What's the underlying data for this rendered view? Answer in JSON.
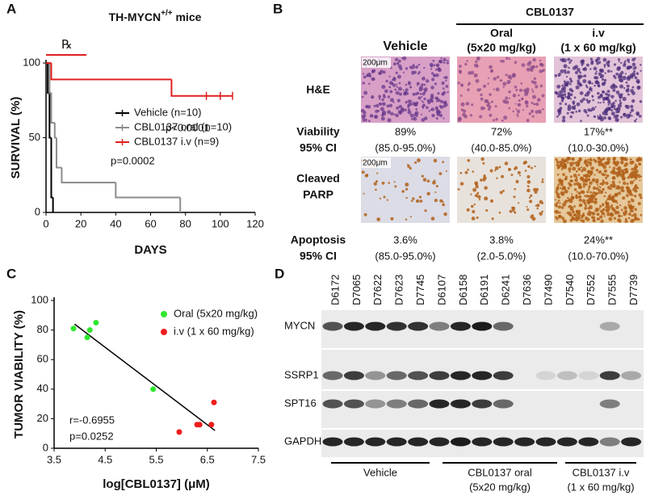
{
  "panel_labels": [
    "A",
    "B",
    "C",
    "D"
  ],
  "chart_data": [
    {
      "type": "step",
      "title": "TH-MYCN",
      "title_superscript": "+/+",
      "treatment_symbol": "℞",
      "x_label": "DAYS",
      "y_label": "SURVIVAL (%)",
      "xlim": [
        0,
        120
      ],
      "ylim": [
        0,
        100
      ],
      "xticks": [
        0,
        20,
        40,
        60,
        80,
        100,
        120
      ],
      "yticks": [
        0,
        50,
        100
      ],
      "series": [
        {
          "name": "Vehicle (n=10)",
          "color": "#000000",
          "x": [
            0,
            1,
            2,
            3,
            4
          ],
          "values": [
            100,
            80,
            50,
            10,
            0
          ]
        },
        {
          "name": "CBL0137 oral (n=10)",
          "color": "#8c8c8c",
          "x": [
            0,
            2,
            3,
            5,
            6,
            9,
            40,
            77
          ],
          "values": [
            100,
            80,
            60,
            50,
            30,
            20,
            10,
            0
          ]
        },
        {
          "name": "CBL0137 i.v (n=9)",
          "color": "#e02020",
          "x": [
            0,
            3,
            72,
            107
          ],
          "values": [
            100,
            89,
            78,
            78
          ],
          "censored_x": [
            92,
            100,
            107
          ]
        }
      ],
      "annotations": [
        "p<0.0001",
        "p=0.0002"
      ]
    },
    {
      "type": "scatter",
      "x_label": "log[CBL0137] (μM)",
      "y_label": "TUMOR VIABILITY (%)",
      "xlim": [
        3.5,
        7.5
      ],
      "ylim": [
        0,
        100
      ],
      "xticks": [
        3.5,
        4.5,
        5.5,
        6.5,
        7.5
      ],
      "yticks": [
        0,
        20,
        40,
        60,
        80,
        100
      ],
      "series": [
        {
          "name": "Oral (5x20 mg/kg)",
          "color": "#2ee82e",
          "x": [
            3.88,
            4.15,
            4.2,
            4.32,
            5.44
          ],
          "values": [
            81,
            75,
            80,
            85,
            40
          ]
        },
        {
          "name": "i.v (1 x 60 mg/kg)",
          "color": "#ee1c1c",
          "x": [
            5.95,
            6.3,
            6.35,
            6.58,
            6.63
          ],
          "values": [
            11,
            16,
            16,
            16,
            31
          ]
        }
      ],
      "fit_line": {
        "x": [
          3.9,
          6.65
        ],
        "values": [
          84,
          12
        ]
      },
      "annotations": [
        "r=-0.6955",
        "p=0.0252"
      ]
    }
  ],
  "panel_b": {
    "group_header": "CBL0137",
    "columns": [
      {
        "title": "Vehicle"
      },
      {
        "title": "Oral",
        "dose": "(5x20 mg/kg)"
      },
      {
        "title": "i.v",
        "dose": "(1 x 60 mg/kg)"
      }
    ],
    "scale_bar": "200μm",
    "he_label": "H&E",
    "viability_label": [
      "Viability",
      "95% CI"
    ],
    "viability": [
      {
        "value": "89%",
        "ci": "(85.0-95.0%)"
      },
      {
        "value": "72%",
        "ci": "(40.0-85.0%)"
      },
      {
        "value": "17%**",
        "ci": "(10.0-30.0%)"
      }
    ],
    "parp_label": [
      "Cleaved",
      "PARP"
    ],
    "apoptosis_label": [
      "Apoptosis",
      "95% CI"
    ],
    "apoptosis": [
      {
        "value": "3.6%",
        "ci": "(85.0-95.0%)"
      },
      {
        "value": "3.8%",
        "ci": "(2.0-5.0%)"
      },
      {
        "value": "24%**",
        "ci": "(10.0-70.0%)"
      }
    ]
  },
  "panel_d": {
    "samples": [
      "D6172",
      "D7065",
      "D7622",
      "D7623",
      "D7745",
      "D6107",
      "D6158",
      "D6191",
      "D6241",
      "D7636",
      "D7490",
      "D7540",
      "D7552",
      "D7555",
      "D7739"
    ],
    "proteins": [
      "MYCN",
      "SSRP1",
      "SPT16",
      "GAPDH"
    ],
    "groups": [
      {
        "name": "Vehicle"
      },
      {
        "name": "CBL0137 oral",
        "dose": "(5x20 mg/kg)"
      },
      {
        "name": "CBL0137 i.v",
        "dose": "(1 x 60 mg/kg)"
      }
    ]
  }
}
